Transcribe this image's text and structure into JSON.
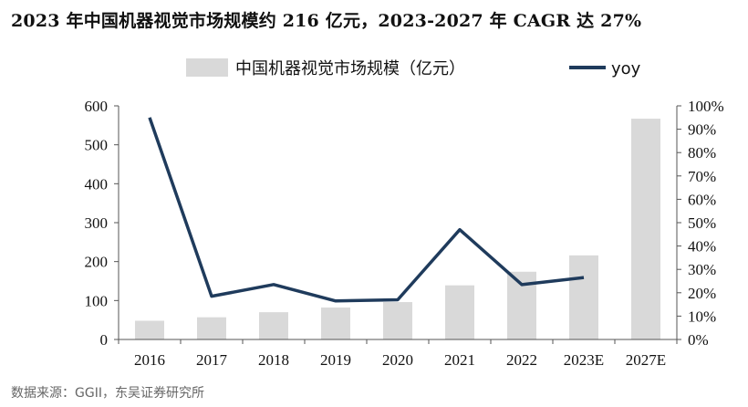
{
  "title": "2023 年中国机器视觉市场规模约 216 亿元，2023-2027 年 CAGR 达 27%",
  "source": "数据来源：GGII，东吴证券研究所",
  "chart_data": {
    "type": "bar",
    "categories": [
      "2016",
      "2017",
      "2018",
      "2019",
      "2020",
      "2021",
      "2022",
      "2023E",
      "2027E"
    ],
    "series": [
      {
        "name": "中国机器视觉市场规模（亿元）",
        "type": "bar",
        "axis": "left",
        "color": "#d9d9d9",
        "values": [
          48,
          57,
          70,
          82,
          96,
          139,
          174,
          216,
          567
        ]
      },
      {
        "name": "yoy",
        "type": "line",
        "axis": "right",
        "color": "#1f3b5c",
        "values": [
          0.95,
          0.185,
          0.235,
          0.165,
          0.17,
          0.47,
          0.235,
          0.265,
          null
        ]
      }
    ],
    "left_axis": {
      "min": 0,
      "max": 600,
      "ticks": [
        "0",
        "100",
        "200",
        "300",
        "400",
        "500",
        "600"
      ]
    },
    "right_axis": {
      "min": 0,
      "max": 1,
      "ticks": [
        "0%",
        "10%",
        "20%",
        "30%",
        "40%",
        "50%",
        "60%",
        "70%",
        "80%",
        "90%",
        "100%"
      ]
    },
    "legend_position": "top",
    "grid": false
  }
}
